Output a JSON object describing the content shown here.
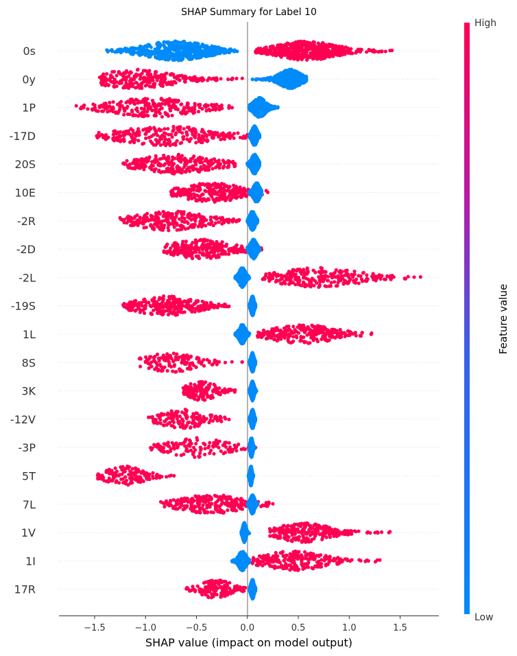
{
  "chart_data": {
    "type": "scatter",
    "subtype": "shap-beeswarm",
    "title": "SHAP Summary for Label 10",
    "xlabel": "SHAP value (impact on model output)",
    "xlim": [
      -1.85,
      1.88
    ],
    "xticks": [
      "-1.5",
      "-1.0",
      "-0.5",
      "0.0",
      "0.5",
      "1.0",
      "1.5"
    ],
    "xtick_values": [
      -1.5,
      -1.0,
      -0.5,
      0.0,
      0.5,
      1.0,
      1.5
    ],
    "colorbar": {
      "label": "Feature value",
      "high": "High",
      "low": "Low",
      "high_color": "#ff0052",
      "low_color": "#008bfb"
    },
    "features": [
      {
        "name": "0s",
        "high": {
          "min": 0.08,
          "max": 1.42,
          "center": 0.58,
          "spread": 0.28,
          "density": "heavy"
        },
        "low": {
          "min": -1.38,
          "max": -0.1,
          "center": -0.7,
          "spread": 0.3,
          "density": "heavy"
        }
      },
      {
        "name": "0y",
        "high": {
          "min": -1.45,
          "max": -0.05,
          "center": -1.1,
          "spread": 0.35,
          "density": "medium"
        },
        "low": {
          "min": 0.05,
          "max": 0.58,
          "center": 0.42,
          "spread": 0.1,
          "density": "heavy"
        }
      },
      {
        "name": "1P",
        "high": {
          "min": -1.68,
          "max": -0.15,
          "center": -0.92,
          "spread": 0.4,
          "density": "medium"
        },
        "low": {
          "min": 0.02,
          "max": 0.3,
          "center": 0.12,
          "spread": 0.06,
          "density": "heavy"
        }
      },
      {
        "name": "-17D",
        "high": {
          "min": -1.48,
          "max": 0.02,
          "center": -0.8,
          "spread": 0.45,
          "density": "medium"
        },
        "low": {
          "min": 0.02,
          "max": 0.12,
          "center": 0.07,
          "spread": 0.025,
          "density": "heavy"
        }
      },
      {
        "name": "20S",
        "high": {
          "min": -1.22,
          "max": -0.12,
          "center": -0.7,
          "spread": 0.35,
          "density": "medium"
        },
        "low": {
          "min": 0.0,
          "max": 0.12,
          "center": 0.07,
          "spread": 0.03,
          "density": "heavy"
        }
      },
      {
        "name": "10E",
        "high": {
          "min": -0.75,
          "max": 0.2,
          "center": -0.35,
          "spread": 0.28,
          "density": "medium"
        },
        "low": {
          "min": 0.02,
          "max": 0.14,
          "center": 0.09,
          "spread": 0.03,
          "density": "heavy"
        }
      },
      {
        "name": "-2R",
        "high": {
          "min": -1.25,
          "max": -0.08,
          "center": -0.75,
          "spread": 0.35,
          "density": "medium"
        },
        "low": {
          "min": 0.0,
          "max": 0.1,
          "center": 0.05,
          "spread": 0.025,
          "density": "heavy"
        }
      },
      {
        "name": "-2D",
        "high": {
          "min": -0.82,
          "max": 0.14,
          "center": -0.45,
          "spread": 0.3,
          "density": "medium"
        },
        "low": {
          "min": 0.0,
          "max": 0.12,
          "center": 0.06,
          "spread": 0.03,
          "density": "heavy"
        }
      },
      {
        "name": "-2L",
        "high": {
          "min": 0.15,
          "max": 1.7,
          "center": 0.7,
          "spread": 0.4,
          "density": "medium"
        },
        "low": {
          "min": -0.12,
          "max": 0.02,
          "center": -0.05,
          "spread": 0.03,
          "density": "heavy"
        }
      },
      {
        "name": "-19S",
        "high": {
          "min": -1.22,
          "max": -0.18,
          "center": -0.8,
          "spread": 0.3,
          "density": "medium"
        },
        "low": {
          "min": 0.02,
          "max": 0.08,
          "center": 0.05,
          "spread": 0.015,
          "density": "heavy"
        }
      },
      {
        "name": "1L",
        "high": {
          "min": 0.1,
          "max": 1.22,
          "center": 0.55,
          "spread": 0.3,
          "density": "medium"
        },
        "low": {
          "min": -0.12,
          "max": 0.02,
          "center": -0.05,
          "spread": 0.03,
          "density": "heavy"
        }
      },
      {
        "name": "8S",
        "high": {
          "min": -1.06,
          "max": -0.05,
          "center": -0.75,
          "spread": 0.25,
          "density": "light"
        },
        "low": {
          "min": 0.02,
          "max": 0.08,
          "center": 0.05,
          "spread": 0.015,
          "density": "heavy"
        }
      },
      {
        "name": "3K",
        "high": {
          "min": -0.63,
          "max": -0.12,
          "center": -0.45,
          "spread": 0.14,
          "density": "light"
        },
        "low": {
          "min": 0.02,
          "max": 0.09,
          "center": 0.05,
          "spread": 0.015,
          "density": "heavy"
        }
      },
      {
        "name": "-12V",
        "high": {
          "min": -0.97,
          "max": -0.18,
          "center": -0.62,
          "spread": 0.22,
          "density": "light"
        },
        "low": {
          "min": 0.02,
          "max": 0.08,
          "center": 0.05,
          "spread": 0.015,
          "density": "heavy"
        }
      },
      {
        "name": "-3P",
        "high": {
          "min": -0.95,
          "max": 0.08,
          "center": -0.5,
          "spread": 0.28,
          "density": "light"
        },
        "low": {
          "min": 0.02,
          "max": 0.07,
          "center": 0.04,
          "spread": 0.012,
          "density": "heavy"
        }
      },
      {
        "name": "5T",
        "high": {
          "min": -1.47,
          "max": -0.72,
          "center": -1.2,
          "spread": 0.18,
          "density": "light"
        },
        "low": {
          "min": 0.01,
          "max": 0.06,
          "center": 0.035,
          "spread": 0.01,
          "density": "heavy"
        }
      },
      {
        "name": "7L",
        "high": {
          "min": -0.85,
          "max": 0.25,
          "center": -0.35,
          "spread": 0.3,
          "density": "medium"
        },
        "low": {
          "min": 0.0,
          "max": 0.1,
          "center": 0.05,
          "spread": 0.02,
          "density": "heavy"
        }
      },
      {
        "name": "1V",
        "high": {
          "min": 0.22,
          "max": 1.4,
          "center": 0.55,
          "spread": 0.25,
          "density": "medium"
        },
        "low": {
          "min": -0.06,
          "max": 0.02,
          "center": -0.03,
          "spread": 0.015,
          "density": "heavy"
        }
      },
      {
        "name": "1I",
        "high": {
          "min": 0.05,
          "max": 1.3,
          "center": 0.45,
          "spread": 0.3,
          "density": "medium"
        },
        "low": {
          "min": -0.15,
          "max": 0.02,
          "center": -0.05,
          "spread": 0.035,
          "density": "heavy"
        }
      },
      {
        "name": "17R",
        "high": {
          "min": -0.6,
          "max": -0.02,
          "center": -0.3,
          "spread": 0.15,
          "density": "light"
        },
        "low": {
          "min": 0.02,
          "max": 0.08,
          "center": 0.05,
          "spread": 0.015,
          "density": "heavy"
        }
      }
    ]
  }
}
